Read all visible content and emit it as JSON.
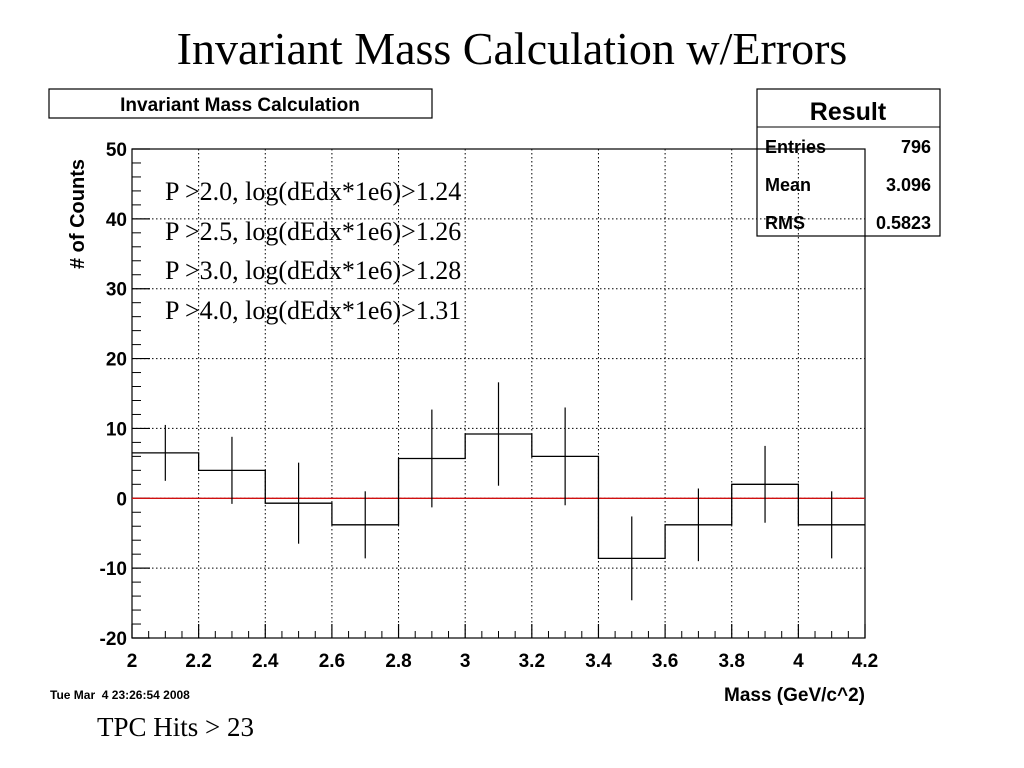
{
  "slide": {
    "title": "Invariant Mass Calculation w/Errors",
    "footer": "TPC Hits > 23"
  },
  "chart_data": {
    "type": "histogram",
    "title": "Invariant Mass Calculation",
    "xlabel": "Mass (GeV/c^2)",
    "ylabel": "# of Counts",
    "xlim": [
      2,
      4.2
    ],
    "ylim": [
      -20,
      50
    ],
    "x_ticks": [
      "2",
      "2.2",
      "2.4",
      "2.6",
      "2.8",
      "3",
      "3.2",
      "3.4",
      "3.6",
      "3.8",
      "4",
      "4.2"
    ],
    "y_ticks": [
      "-20",
      "-10",
      "0",
      "10",
      "20",
      "30",
      "40",
      "50"
    ],
    "grid": true,
    "bin_edges": [
      2.0,
      2.2,
      2.4,
      2.6,
      2.8,
      3.0,
      3.2,
      3.4,
      3.6,
      3.8,
      4.0,
      4.2
    ],
    "bins": [
      {
        "x": 2.1,
        "y": 6.5,
        "err": 4.0
      },
      {
        "x": 2.3,
        "y": 4.0,
        "err": 4.8
      },
      {
        "x": 2.5,
        "y": -0.7,
        "err": 5.8
      },
      {
        "x": 2.7,
        "y": -3.8,
        "err": 4.8
      },
      {
        "x": 2.9,
        "y": 5.7,
        "err": 7.0
      },
      {
        "x": 3.1,
        "y": 9.2,
        "err": 7.4
      },
      {
        "x": 3.3,
        "y": 6.0,
        "err": 7.0
      },
      {
        "x": 3.5,
        "y": -8.6,
        "err": 6.0
      },
      {
        "x": 3.7,
        "y": -3.8,
        "err": 5.2
      },
      {
        "x": 3.9,
        "y": 2.0,
        "err": 5.5
      },
      {
        "x": 4.1,
        "y": -3.8,
        "err": 4.8
      }
    ],
    "reference_line": {
      "y": 0,
      "color": "#d01010"
    },
    "annotations": [
      "P >2.0, log(dEdx*1e6)>1.24",
      "P >2.5, log(dEdx*1e6)>1.26",
      "P >3.0, log(dEdx*1e6)>1.28",
      "P >4.0, log(dEdx*1e6)>1.31"
    ],
    "stats_box": {
      "title": "Result",
      "rows": [
        {
          "label": "Entries",
          "value": "796"
        },
        {
          "label": "Mean",
          "value": "3.096"
        },
        {
          "label": "RMS",
          "value": "0.5823"
        }
      ]
    },
    "timestamp": "Tue Mar  4 23:26:54 2008"
  }
}
